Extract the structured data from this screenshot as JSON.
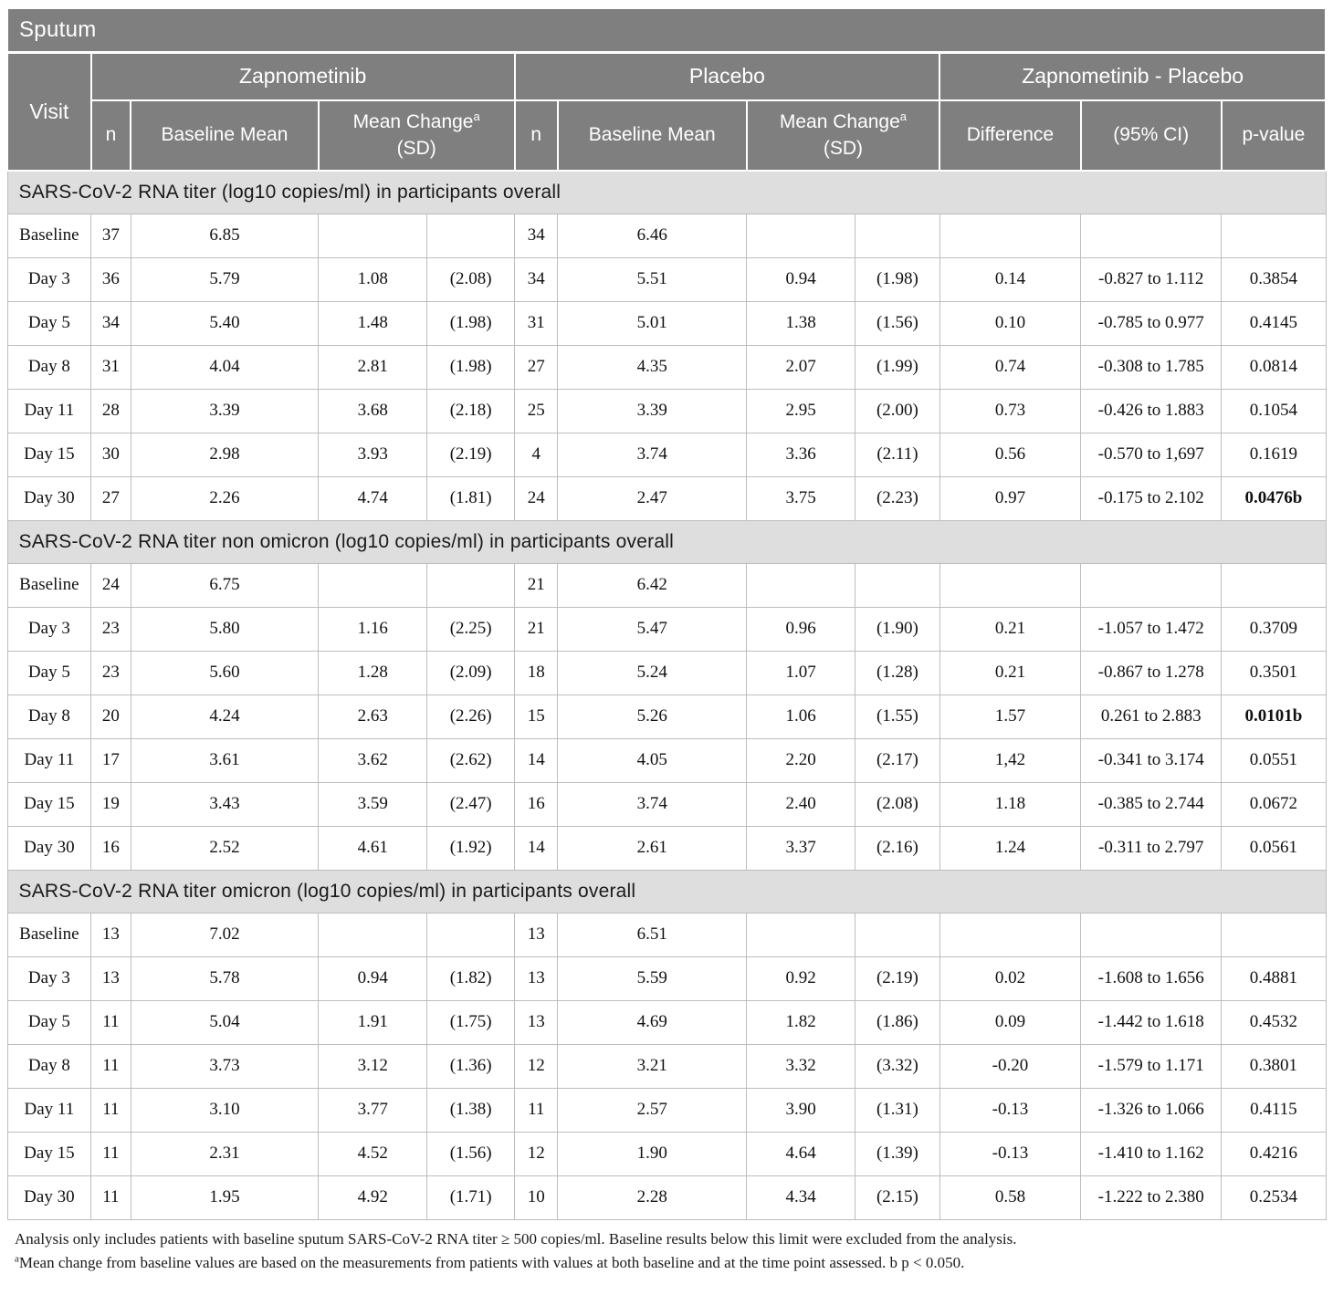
{
  "colors": {
    "header_bg": "#7f7f7f",
    "header_text": "#ffffff",
    "section_bg": "#dedede",
    "body_border": "#bdbdbd",
    "body_text": "#111111"
  },
  "table": {
    "title": "Sputum",
    "visit_header": "Visit",
    "groups": [
      {
        "label": "Zapnometinib"
      },
      {
        "label": "Placebo"
      },
      {
        "label": "Zapnometinib - Placebo"
      }
    ],
    "sub_headers": {
      "n": "n",
      "baseline_mean": "Baseline Mean",
      "mean_change": "Mean Change",
      "mean_change_sup": "a",
      "sd": "(SD)",
      "difference": "Difference",
      "ci": "(95% CI)",
      "p_value": "p-value"
    },
    "sections": [
      {
        "header": "SARS-CoV-2 RNA titer (log10 copies/ml) in participants overall",
        "rows": [
          {
            "cells": [
              "Baseline",
              "37",
              "6.85",
              "",
              "",
              "34",
              "6.46",
              "",
              "",
              "",
              "",
              ""
            ],
            "p_bold": false
          },
          {
            "cells": [
              "Day 3",
              "36",
              "5.79",
              "1.08",
              "(2.08)",
              "34",
              "5.51",
              "0.94",
              "(1.98)",
              "0.14",
              "-0.827 to 1.112",
              "0.3854"
            ],
            "p_bold": false
          },
          {
            "cells": [
              "Day 5",
              "34",
              "5.40",
              "1.48",
              "(1.98)",
              "31",
              "5.01",
              "1.38",
              "(1.56)",
              "0.10",
              "-0.785 to 0.977",
              "0.4145"
            ],
            "p_bold": false
          },
          {
            "cells": [
              "Day 8",
              "31",
              "4.04",
              "2.81",
              "(1.98)",
              "27",
              "4.35",
              "2.07",
              "(1.99)",
              "0.74",
              "-0.308 to 1.785",
              "0.0814"
            ],
            "p_bold": false
          },
          {
            "cells": [
              "Day 11",
              "28",
              "3.39",
              "3.68",
              "(2.18)",
              "25",
              "3.39",
              "2.95",
              "(2.00)",
              "0.73",
              "-0.426 to 1.883",
              "0.1054"
            ],
            "p_bold": false
          },
          {
            "cells": [
              "Day 15",
              "30",
              "2.98",
              "3.93",
              "(2.19)",
              "4",
              "3.74",
              "3.36",
              "(2.11)",
              "0.56",
              "-0.570 to 1,697",
              "0.1619"
            ],
            "p_bold": false
          },
          {
            "cells": [
              "Day 30",
              "27",
              "2.26",
              "4.74",
              "(1.81)",
              "24",
              "2.47",
              "3.75",
              "(2.23)",
              "0.97",
              "-0.175 to 2.102",
              "0.0476b"
            ],
            "p_bold": true
          }
        ]
      },
      {
        "header": "SARS-CoV-2 RNA titer non omicron (log10 copies/ml) in participants overall",
        "rows": [
          {
            "cells": [
              "Baseline",
              "24",
              "6.75",
              "",
              "",
              "21",
              "6.42",
              "",
              "",
              "",
              "",
              ""
            ],
            "p_bold": false
          },
          {
            "cells": [
              "Day 3",
              "23",
              "5.80",
              "1.16",
              "(2.25)",
              "21",
              "5.47",
              "0.96",
              "(1.90)",
              "0.21",
              "-1.057 to 1.472",
              "0.3709"
            ],
            "p_bold": false
          },
          {
            "cells": [
              "Day 5",
              "23",
              "5.60",
              "1.28",
              "(2.09)",
              "18",
              "5.24",
              "1.07",
              "(1.28)",
              "0.21",
              "-0.867 to 1.278",
              "0.3501"
            ],
            "p_bold": false
          },
          {
            "cells": [
              "Day 8",
              "20",
              "4.24",
              "2.63",
              "(2.26)",
              "15",
              "5.26",
              "1.06",
              "(1.55)",
              "1.57",
              "0.261 to 2.883",
              "0.0101b"
            ],
            "p_bold": true
          },
          {
            "cells": [
              "Day 11",
              "17",
              "3.61",
              "3.62",
              "(2.62)",
              "14",
              "4.05",
              "2.20",
              "(2.17)",
              "1,42",
              "-0.341 to 3.174",
              "0.0551"
            ],
            "p_bold": false
          },
          {
            "cells": [
              "Day 15",
              "19",
              "3.43",
              "3.59",
              "(2.47)",
              "16",
              "3.74",
              "2.40",
              "(2.08)",
              "1.18",
              "-0.385 to 2.744",
              "0.0672"
            ],
            "p_bold": false
          },
          {
            "cells": [
              "Day 30",
              "16",
              "2.52",
              "4.61",
              "(1.92)",
              "14",
              "2.61",
              "3.37",
              "(2.16)",
              "1.24",
              "-0.311 to 2.797",
              "0.0561"
            ],
            "p_bold": false
          }
        ]
      },
      {
        "header": "SARS-CoV-2 RNA titer omicron (log10 copies/ml) in participants overall",
        "rows": [
          {
            "cells": [
              "Baseline",
              "13",
              "7.02",
              "",
              "",
              "13",
              "6.51",
              "",
              "",
              "",
              "",
              ""
            ],
            "p_bold": false
          },
          {
            "cells": [
              "Day 3",
              "13",
              "5.78",
              "0.94",
              "(1.82)",
              "13",
              "5.59",
              "0.92",
              "(2.19)",
              "0.02",
              "-1.608 to 1.656",
              "0.4881"
            ],
            "p_bold": false
          },
          {
            "cells": [
              "Day 5",
              "11",
              "5.04",
              "1.91",
              "(1.75)",
              "13",
              "4.69",
              "1.82",
              "(1.86)",
              "0.09",
              "-1.442 to 1.618",
              "0.4532"
            ],
            "p_bold": false
          },
          {
            "cells": [
              "Day 8",
              "11",
              "3.73",
              "3.12",
              "(1.36)",
              "12",
              "3.21",
              "3.32",
              "(3.32)",
              "-0.20",
              "-1.579 to 1.171",
              "0.3801"
            ],
            "p_bold": false
          },
          {
            "cells": [
              "Day 11",
              "11",
              "3.10",
              "3.77",
              "(1.38)",
              "11",
              "2.57",
              "3.90",
              "(1.31)",
              "-0.13",
              "-1.326 to 1.066",
              "0.4115"
            ],
            "p_bold": false
          },
          {
            "cells": [
              "Day 15",
              "11",
              "2.31",
              "4.52",
              "(1.56)",
              "12",
              "1.90",
              "4.64",
              "(1.39)",
              "-0.13",
              "-1.410 to 1.162",
              "0.4216"
            ],
            "p_bold": false
          },
          {
            "cells": [
              "Day 30",
              "11",
              "1.95",
              "4.92",
              "(1.71)",
              "10",
              "2.28",
              "4.34",
              "(2.15)",
              "0.58",
              "-1.222 to 2.380",
              "0.2534"
            ],
            "p_bold": false
          }
        ]
      }
    ],
    "footnotes": [
      {
        "sup": "",
        "text": "Analysis only includes patients with baseline sputum SARS-CoV-2 RNA titer ≥ 500 copies/ml. Baseline results below this limit were excluded from the analysis."
      },
      {
        "sup": "a",
        "text": "Mean change from baseline values are based on the measurements from patients with values at both baseline and at the time point assessed. b p < 0.050."
      }
    ]
  }
}
